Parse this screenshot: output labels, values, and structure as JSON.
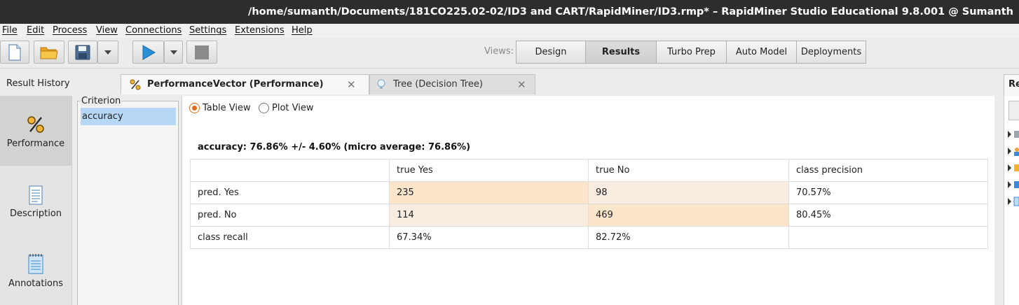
{
  "window": {
    "title": "/home/sumanth/Documents/181CO225.02-02/ID3 and CART/RapidMiner/ID3.rmp* – RapidMiner Studio Educational 9.8.001 @ Sumanth"
  },
  "menu": [
    "File",
    "Edit",
    "Process",
    "View",
    "Connections",
    "Settings",
    "Extensions",
    "Help"
  ],
  "toolbar": {
    "views_label": "Views:",
    "views": [
      "Design",
      "Results",
      "Turbo Prep",
      "Auto Model",
      "Deployments"
    ],
    "active_view": "Results"
  },
  "tabs": {
    "result_history": "Result History",
    "items": [
      {
        "label": "PerformanceVector (Performance)",
        "icon": "percent-icon",
        "active": true
      },
      {
        "label": "Tree (Decision Tree)",
        "icon": "lightbulb-icon",
        "active": false
      }
    ],
    "right_tab_partial": "Re"
  },
  "sidebar": {
    "items": [
      {
        "label": "Performance",
        "icon": "percent-icon",
        "selected": true
      },
      {
        "label": "Description",
        "icon": "document-icon",
        "selected": false
      },
      {
        "label": "Annotations",
        "icon": "notepad-icon",
        "selected": false
      }
    ]
  },
  "criterion": {
    "legend": "Criterion",
    "items": [
      "accuracy"
    ],
    "selected": "accuracy"
  },
  "view_mode": {
    "options": [
      "Table View",
      "Plot View"
    ],
    "selected": "Table View"
  },
  "performance": {
    "summary": "accuracy: 76.86% +/- 4.60% (micro average: 76.86%)",
    "headers": [
      "",
      "true Yes",
      "true No",
      "class precision"
    ],
    "rows": [
      {
        "label": "pred. Yes",
        "cells": [
          "235",
          "98",
          "70.57%"
        ]
      },
      {
        "label": "pred. No",
        "cells": [
          "114",
          "469",
          "80.45%"
        ]
      },
      {
        "label": "class recall",
        "cells": [
          "67.34%",
          "82.72%",
          ""
        ]
      }
    ],
    "colors": {
      "correct_fill": "#fbe5cb",
      "error_fill": "#f8ede0",
      "accent": "#e36d1c"
    }
  }
}
